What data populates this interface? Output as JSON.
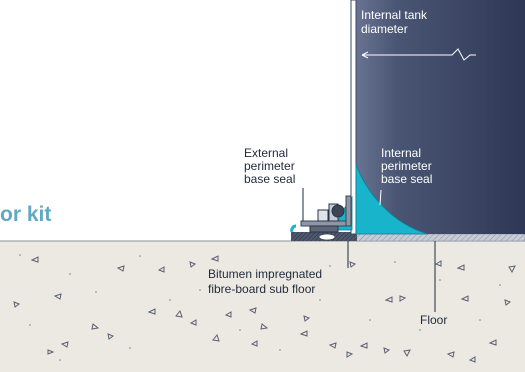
{
  "colors": {
    "tank": "#3c4868",
    "tank_highlight": "#5d6985",
    "seal": "#18b4cc",
    "kit_text": "#5fa9c4",
    "concrete": "#ece9e3",
    "floor_plate": "#b9bfcb",
    "hardware": "#3b4656"
  },
  "heading_fragment": "or kit",
  "tank_diameter_label": [
    "Internal tank",
    "diameter"
  ],
  "external_seal_label": [
    "External",
    "perimeter",
    "base seal"
  ],
  "internal_seal_label": [
    "Internal",
    "perimeter",
    "base seal"
  ],
  "subfloor_label": [
    "Bitumen impregnated",
    "fibre-board sub floor"
  ],
  "floor_label": "Floor"
}
